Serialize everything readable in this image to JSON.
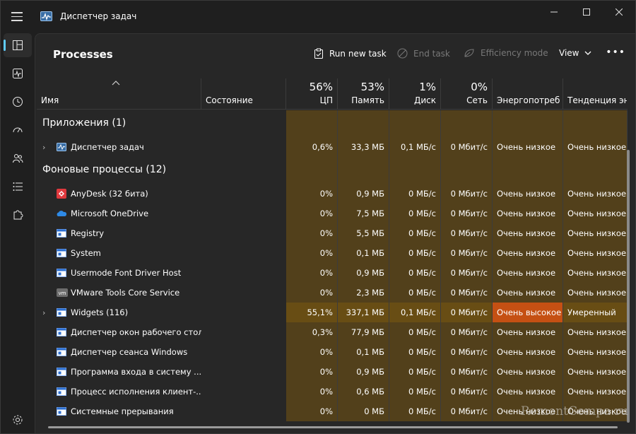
{
  "app": {
    "title": "Диспетчер задач"
  },
  "toolbar": {
    "page_title": "Processes",
    "run_new_task": "Run new task",
    "end_task": "End task",
    "efficiency_mode": "Efficiency mode",
    "view": "View"
  },
  "columns": {
    "name": "Имя",
    "status": "Состояние",
    "cpu_pct": "56%",
    "cpu": "ЦП",
    "mem_pct": "53%",
    "mem": "Память",
    "disk_pct": "1%",
    "disk": "Диск",
    "net_pct": "0%",
    "net": "Сеть",
    "energy": "Энергопотреб...",
    "trend": "Тенденция эн..."
  },
  "groups": {
    "apps": "Приложения (1)",
    "background": "Фоновые процессы (12)"
  },
  "app_rows": [
    {
      "name": "Диспетчер задач",
      "icon": "task-manager-icon",
      "cpu": "0,6%",
      "mem": "33,3 МБ",
      "disk": "0,1 МБ/с",
      "net": "0 Мбит/с",
      "energy": "Очень низкое",
      "trend": "Очень низкое"
    }
  ],
  "bg_rows": [
    {
      "name": "AnyDesk (32 бита)",
      "icon": "anydesk-icon",
      "cpu": "0%",
      "mem": "0,9 МБ",
      "disk": "0 МБ/с",
      "net": "0 Мбит/с",
      "energy": "Очень низкое",
      "trend": "Очень низкое"
    },
    {
      "name": "Microsoft OneDrive",
      "icon": "onedrive-icon",
      "cpu": "0%",
      "mem": "7,5 МБ",
      "disk": "0 МБ/с",
      "net": "0 Мбит/с",
      "energy": "Очень низкое",
      "trend": "Очень низкое"
    },
    {
      "name": "Registry",
      "icon": "system-window-icon",
      "cpu": "0%",
      "mem": "5,5 МБ",
      "disk": "0 МБ/с",
      "net": "0 Мбит/с",
      "energy": "Очень низкое",
      "trend": "Очень низкое"
    },
    {
      "name": "System",
      "icon": "system-window-icon",
      "cpu": "0%",
      "mem": "0,1 МБ",
      "disk": "0 МБ/с",
      "net": "0 Мбит/с",
      "energy": "Очень низкое",
      "trend": "Очень низкое"
    },
    {
      "name": "Usermode Font Driver Host",
      "icon": "system-window-icon",
      "cpu": "0%",
      "mem": "0,9 МБ",
      "disk": "0 МБ/с",
      "net": "0 Мбит/с",
      "energy": "Очень низкое",
      "trend": "Очень низкое"
    },
    {
      "name": "VMware Tools Core Service",
      "icon": "vmware-icon",
      "cpu": "0%",
      "mem": "2,3 МБ",
      "disk": "0 МБ/с",
      "net": "0 Мбит/с",
      "energy": "Очень низкое",
      "trend": "Очень низкое"
    },
    {
      "name": "Widgets (116)",
      "icon": "system-window-icon",
      "cpu": "55,1%",
      "mem": "337,1 МБ",
      "disk": "0,1 МБ/с",
      "net": "0 Мбит/с",
      "energy": "Очень высокое",
      "trend": "Умеренный",
      "expandable": true,
      "hot": true
    },
    {
      "name": "Диспетчер окон рабочего стола",
      "icon": "system-window-icon",
      "cpu": "0,3%",
      "mem": "77,9 МБ",
      "disk": "0 МБ/с",
      "net": "0 Мбит/с",
      "energy": "Очень низкое",
      "trend": "Очень низкое"
    },
    {
      "name": "Диспетчер сеанса  Windows",
      "icon": "system-window-icon",
      "cpu": "0%",
      "mem": "0,1 МБ",
      "disk": "0 МБ/с",
      "net": "0 Мбит/с",
      "energy": "Очень низкое",
      "trend": "Очень низкое"
    },
    {
      "name": "Программа входа в систему ...",
      "icon": "system-window-icon",
      "cpu": "0%",
      "mem": "0,9 МБ",
      "disk": "0 МБ/с",
      "net": "0 Мбит/с",
      "energy": "Очень низкое",
      "trend": "Очень низкое"
    },
    {
      "name": "Процесс исполнения клиент-...",
      "icon": "system-window-icon",
      "cpu": "0%",
      "mem": "0,6 МБ",
      "disk": "0 МБ/с",
      "net": "0 Мбит/с",
      "energy": "Очень низкое",
      "trend": "Очень низкое"
    },
    {
      "name": "Системные прерывания",
      "icon": "system-window-icon",
      "cpu": "0%",
      "mem": "0 МБ",
      "disk": "0 МБ/с",
      "net": "0 Мбит/с",
      "energy": "Очень низкое",
      "trend": "Очень низкое"
    }
  ],
  "colors": {
    "heat_low": "#52401b",
    "heat_mid": "#684d14",
    "heat_high": "#c55013",
    "accent": "#60cdff"
  },
  "watermark": "RemontCompa.ru"
}
